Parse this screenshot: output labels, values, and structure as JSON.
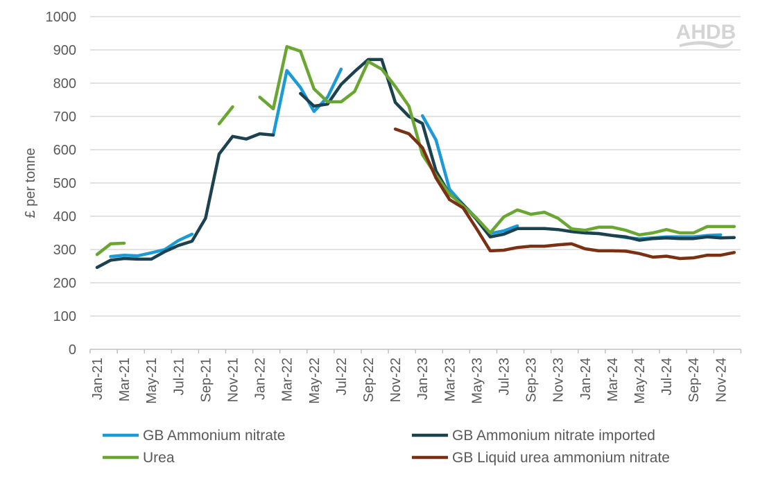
{
  "chart_data": {
    "type": "line",
    "title": "",
    "xlabel": "",
    "ylabel": "£ per tonne",
    "ylim": [
      0,
      1000
    ],
    "yticks": [
      0,
      100,
      200,
      300,
      400,
      500,
      600,
      700,
      800,
      900,
      1000
    ],
    "grid": "horizontal",
    "legend_position": "bottom",
    "watermark": "AHDB",
    "x": [
      "Jan-21",
      "Feb-21",
      "Mar-21",
      "Apr-21",
      "May-21",
      "Jun-21",
      "Jul-21",
      "Aug-21",
      "Sep-21",
      "Oct-21",
      "Nov-21",
      "Dec-21",
      "Jan-22",
      "Feb-22",
      "Mar-22",
      "Apr-22",
      "May-22",
      "Jun-22",
      "Jul-22",
      "Aug-22",
      "Sep-22",
      "Oct-22",
      "Nov-22",
      "Dec-22",
      "Jan-23",
      "Feb-23",
      "Mar-23",
      "Apr-23",
      "May-23",
      "Jun-23",
      "Jul-23",
      "Aug-23",
      "Sep-23",
      "Oct-23",
      "Nov-23",
      "Dec-23",
      "Jan-24",
      "Feb-24",
      "Mar-24",
      "Apr-24",
      "May-24",
      "Jun-24",
      "Jul-24",
      "Aug-24",
      "Sep-24",
      "Oct-24",
      "Nov-24",
      "Dec-24"
    ],
    "xtick_labels": [
      "Jan-21",
      "Mar-21",
      "May-21",
      "Jul-21",
      "Sep-21",
      "Nov-21",
      "Jan-22",
      "Mar-22",
      "May-22",
      "Jul-22",
      "Sep-22",
      "Nov-22",
      "Jan-23",
      "Mar-23",
      "May-23",
      "Jul-23",
      "Sep-23",
      "Nov-23",
      "Jan-24",
      "Mar-24",
      "May-24",
      "Jul-24",
      "Sep-24",
      "Nov-24"
    ],
    "series": [
      {
        "name": "GB Ammonium nitrate",
        "color": "#1a9ad6",
        "values": [
          null,
          279,
          283,
          281,
          290,
          300,
          327,
          346,
          null,
          null,
          null,
          null,
          null,
          644,
          838,
          787,
          715,
          758,
          842,
          null,
          null,
          null,
          null,
          null,
          702,
          629,
          481,
          435,
          394,
          348,
          356,
          371,
          null,
          null,
          null,
          354,
          350,
          348,
          342,
          336,
          332,
          335,
          338,
          338,
          338,
          342,
          344,
          null
        ]
      },
      {
        "name": "GB Ammonium nitrate imported",
        "color": "#1c4250",
        "values": [
          246,
          268,
          273,
          271,
          271,
          294,
          312,
          325,
          394,
          587,
          640,
          632,
          648,
          644,
          null,
          769,
          731,
          737,
          796,
          835,
          871,
          871,
          742,
          700,
          679,
          536,
          466,
          435,
          390,
          338,
          346,
          363,
          363,
          363,
          360,
          354,
          350,
          348,
          342,
          338,
          328,
          333,
          335,
          333,
          333,
          338,
          335,
          336
        ]
      },
      {
        "name": "Urea",
        "color": "#6aa632",
        "values": [
          285,
          317,
          319,
          null,
          null,
          null,
          null,
          null,
          null,
          678,
          729,
          null,
          758,
          723,
          910,
          896,
          783,
          744,
          744,
          775,
          865,
          842,
          790,
          731,
          585,
          523,
          467,
          431,
          394,
          350,
          398,
          419,
          406,
          412,
          394,
          362,
          358,
          367,
          367,
          358,
          344,
          350,
          360,
          350,
          350,
          369,
          369,
          369
        ]
      },
      {
        "name": "GB Liquid urea ammonium nitrate",
        "color": "#7a3113",
        "values": [
          null,
          null,
          null,
          null,
          null,
          null,
          null,
          null,
          null,
          null,
          null,
          null,
          null,
          null,
          null,
          null,
          null,
          null,
          null,
          null,
          null,
          null,
          662,
          648,
          606,
          515,
          450,
          425,
          362,
          296,
          298,
          306,
          310,
          310,
          314,
          317,
          302,
          296,
          296,
          295,
          288,
          277,
          280,
          273,
          275,
          283,
          283,
          291
        ]
      }
    ]
  }
}
